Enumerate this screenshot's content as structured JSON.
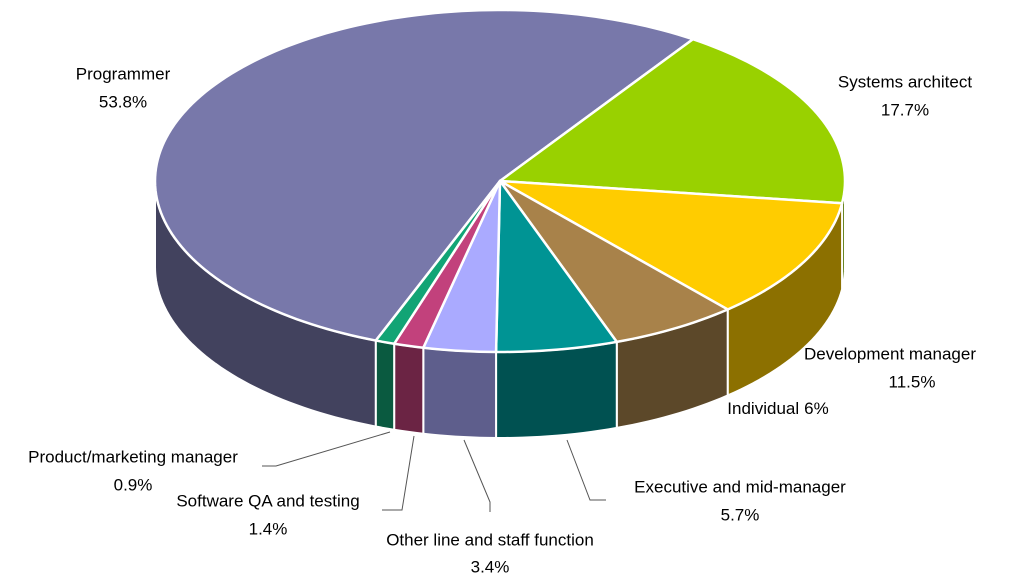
{
  "chart_data": {
    "type": "pie3d",
    "categories": [
      "Programmer",
      "Systems architect",
      "Development manager",
      "Individual",
      "Executive and mid-manager",
      "Other line and staff function",
      "Software QA and testing",
      "Product/marketing manager"
    ],
    "values": [
      53.8,
      17.7,
      11.5,
      6,
      5.7,
      3.4,
      1.4,
      0.9
    ],
    "value_labels": [
      "53.8%",
      "17.7%",
      "11.5%",
      "6%",
      "5.7%",
      "3.4%",
      "1.4%",
      "0.9%"
    ],
    "colors": [
      "#7878aa",
      "#99d100",
      "#ffcc00",
      "#a8824a",
      "#009494",
      "#aaaaff",
      "#c2417c",
      "#12a475"
    ]
  }
}
